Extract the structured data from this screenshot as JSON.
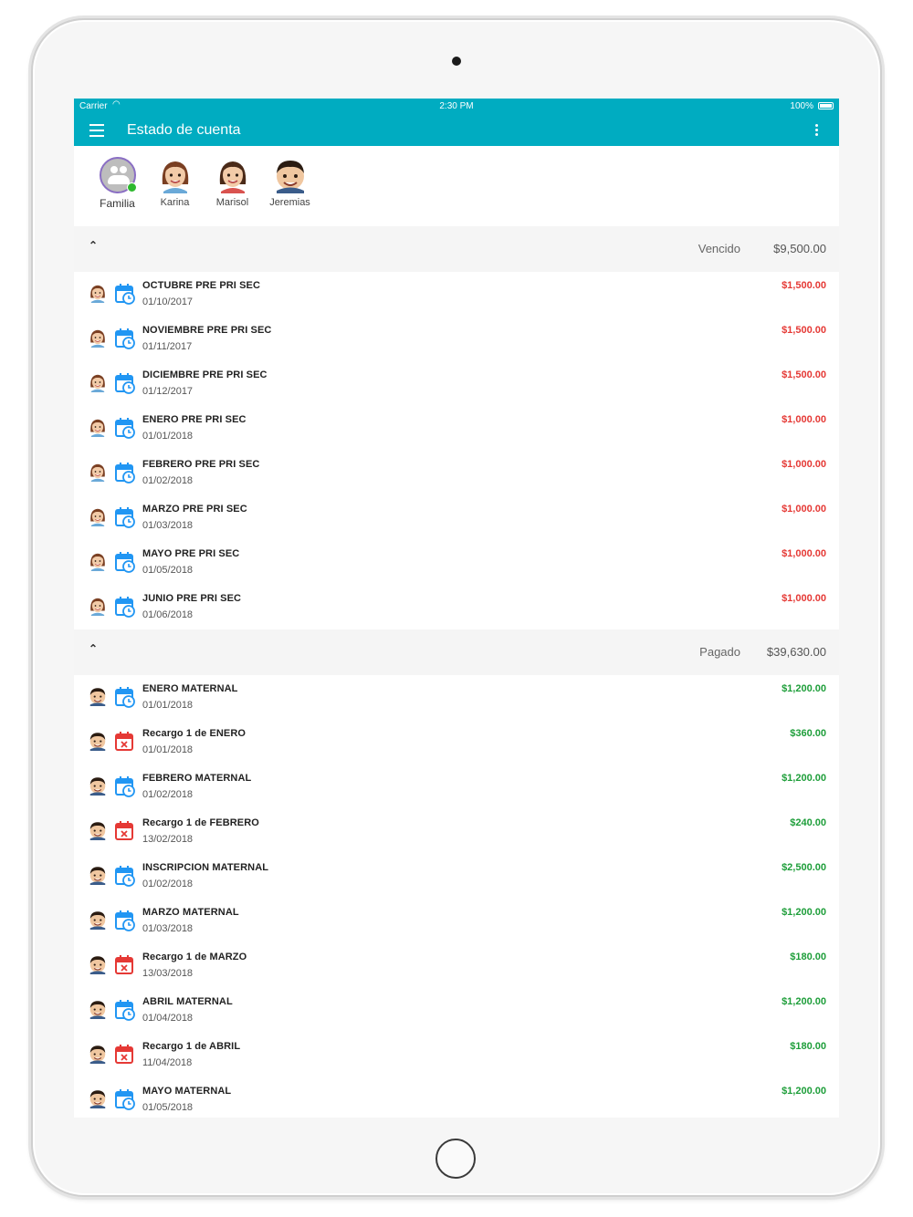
{
  "statusbar": {
    "carrier": "Carrier",
    "time": "2:30 PM",
    "battery": "100%"
  },
  "appbar": {
    "title": "Estado de cuenta"
  },
  "filters": [
    {
      "name": "Familia",
      "kind": "family"
    },
    {
      "name": "Karina",
      "kind": "girl1"
    },
    {
      "name": "Marisol",
      "kind": "girl2"
    },
    {
      "name": "Jeremias",
      "kind": "boy"
    }
  ],
  "sections": [
    {
      "label": "Vencido",
      "total": "$9,500.00",
      "amount_color": "#e53935",
      "items": [
        {
          "avatar": "girl1",
          "icon": "calendar-clock-icon",
          "concept": "OCTUBRE PRE PRI SEC",
          "date": "01/10/2017",
          "amount": "$1,500.00"
        },
        {
          "avatar": "girl1",
          "icon": "calendar-clock-icon",
          "concept": "NOVIEMBRE PRE PRI SEC",
          "date": "01/11/2017",
          "amount": "$1,500.00"
        },
        {
          "avatar": "girl1",
          "icon": "calendar-clock-icon",
          "concept": "DICIEMBRE PRE PRI SEC",
          "date": "01/12/2017",
          "amount": "$1,500.00"
        },
        {
          "avatar": "girl1",
          "icon": "calendar-clock-icon",
          "concept": "ENERO PRE PRI SEC",
          "date": "01/01/2018",
          "amount": "$1,000.00"
        },
        {
          "avatar": "girl1",
          "icon": "calendar-clock-icon",
          "concept": "FEBRERO PRE PRI SEC",
          "date": "01/02/2018",
          "amount": "$1,000.00"
        },
        {
          "avatar": "girl1",
          "icon": "calendar-clock-icon",
          "concept": "MARZO PRE PRI SEC",
          "date": "01/03/2018",
          "amount": "$1,000.00"
        },
        {
          "avatar": "girl1",
          "icon": "calendar-clock-icon",
          "concept": "MAYO PRE PRI SEC",
          "date": "01/05/2018",
          "amount": "$1,000.00"
        },
        {
          "avatar": "girl1",
          "icon": "calendar-clock-icon",
          "concept": "JUNIO PRE PRI SEC",
          "date": "01/06/2018",
          "amount": "$1,000.00"
        }
      ]
    },
    {
      "label": "Pagado",
      "total": "$39,630.00",
      "amount_color": "#1e9e3a",
      "items": [
        {
          "avatar": "boy",
          "icon": "calendar-clock-icon",
          "concept": "ENERO MATERNAL",
          "date": "01/01/2018",
          "amount": "$1,200.00"
        },
        {
          "avatar": "boy",
          "icon": "calendar-x-icon",
          "concept": "Recargo 1 de ENERO",
          "date": "01/01/2018",
          "amount": "$360.00"
        },
        {
          "avatar": "boy",
          "icon": "calendar-clock-icon",
          "concept": "FEBRERO MATERNAL",
          "date": "01/02/2018",
          "amount": "$1,200.00"
        },
        {
          "avatar": "boy",
          "icon": "calendar-x-icon",
          "concept": "Recargo 1 de FEBRERO",
          "date": "13/02/2018",
          "amount": "$240.00"
        },
        {
          "avatar": "boy",
          "icon": "calendar-clock-icon",
          "concept": "INSCRIPCION MATERNAL",
          "date": "01/02/2018",
          "amount": "$2,500.00"
        },
        {
          "avatar": "boy",
          "icon": "calendar-clock-icon",
          "concept": "MARZO MATERNAL",
          "date": "01/03/2018",
          "amount": "$1,200.00"
        },
        {
          "avatar": "boy",
          "icon": "calendar-x-icon",
          "concept": "Recargo 1 de MARZO",
          "date": "13/03/2018",
          "amount": "$180.00"
        },
        {
          "avatar": "boy",
          "icon": "calendar-clock-icon",
          "concept": "ABRIL MATERNAL",
          "date": "01/04/2018",
          "amount": "$1,200.00"
        },
        {
          "avatar": "boy",
          "icon": "calendar-x-icon",
          "concept": "Recargo 1 de ABRIL",
          "date": "11/04/2018",
          "amount": "$180.00"
        },
        {
          "avatar": "boy",
          "icon": "calendar-clock-icon",
          "concept": "MAYO MATERNAL",
          "date": "01/05/2018",
          "amount": "$1,200.00"
        }
      ]
    }
  ],
  "colors": {
    "accent": "#00acc1",
    "calendar_blue": "#2196f3",
    "calendar_red": "#e53935"
  }
}
